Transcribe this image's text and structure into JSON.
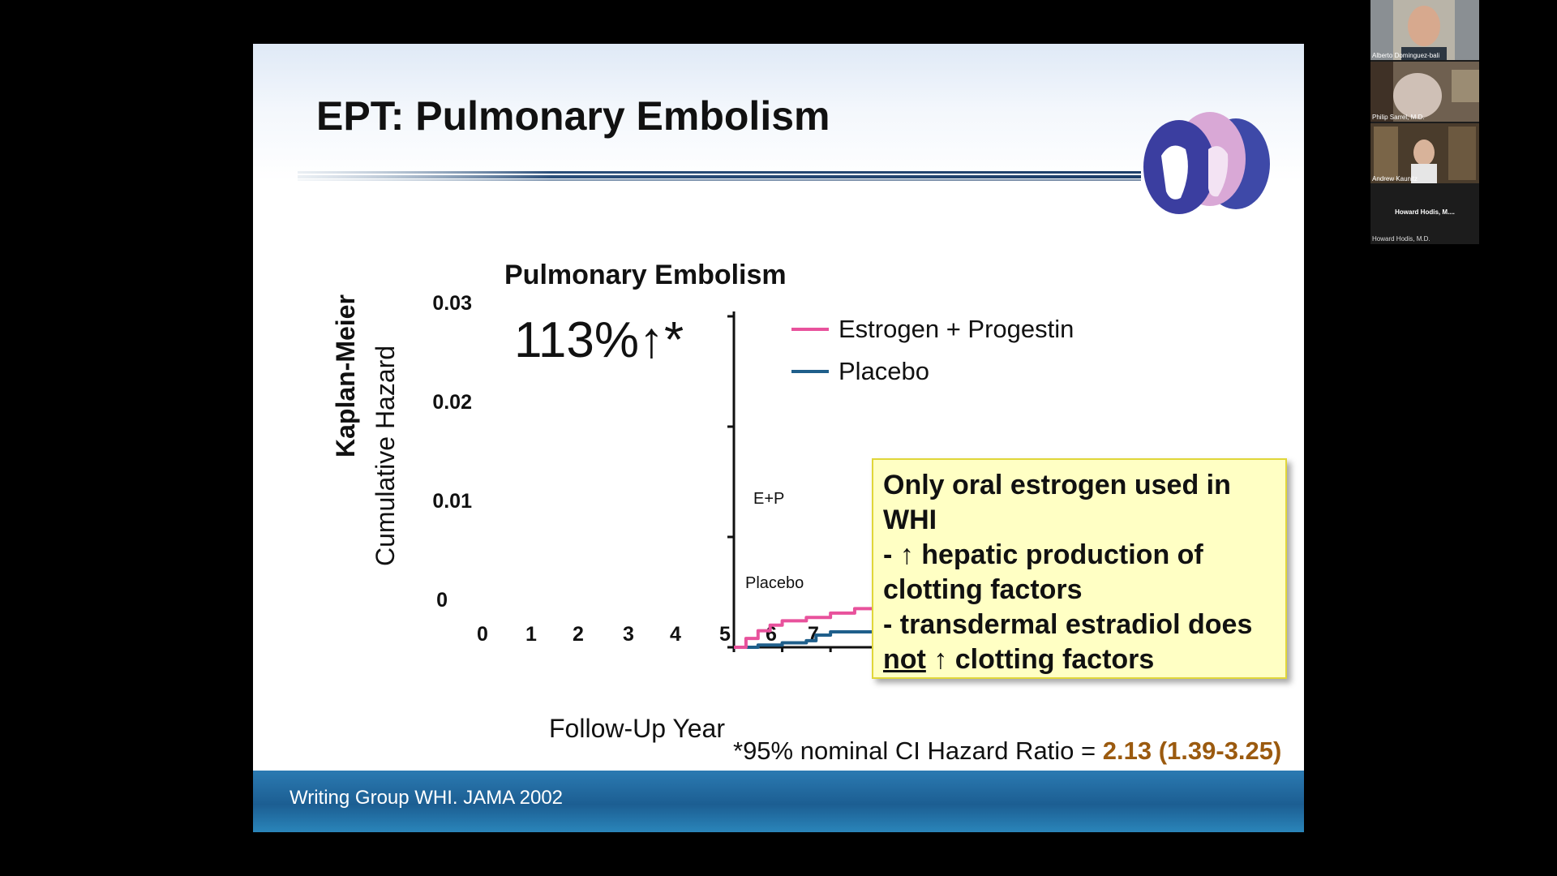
{
  "slide": {
    "title": "EPT: Pulmonary Embolism",
    "chart_title": "Pulmonary Embolism",
    "big_stat": "113%↑*",
    "y_label_1": "Kaplan-Meier",
    "y_label_2": "Cumulative Hazard",
    "x_label": "Follow-Up Year",
    "y_ticks": [
      "0.03",
      "0.02",
      "0.01",
      "0"
    ],
    "x_ticks": [
      "0",
      "1",
      "2",
      "3",
      "4",
      "5",
      "6",
      "7"
    ],
    "legend": [
      {
        "label": "Estrogen + Progestin",
        "color": "#e8529c"
      },
      {
        "label": "Placebo",
        "color": "#1f5f8b"
      }
    ],
    "series_labels": {
      "ep": "E+P",
      "placebo": "Placebo"
    },
    "callout": {
      "line1": "Only oral estrogen used in",
      "line2": "WHI",
      "line3": " - ↑ hepatic production of",
      "line4": "clotting factors",
      "line5": " - transdermal estradiol does",
      "line6_not": "not",
      "line6_rest": " ↑ clotting factors"
    },
    "footnote_prefix": "*95% nominal CI Hazard Ratio = ",
    "footnote_value": "2.13 (1.39-3.25)",
    "footer": "Writing Group WHI. JAMA  2002"
  },
  "chart_data": {
    "type": "line",
    "title": "Pulmonary Embolism",
    "xlabel": "Follow-Up Year",
    "ylabel": "Kaplan-Meier Cumulative Hazard",
    "xlim": [
      0,
      7
    ],
    "ylim": [
      0,
      0.03
    ],
    "x_ticks": [
      0,
      1,
      2,
      3,
      4,
      5,
      6,
      7
    ],
    "y_ticks": [
      0,
      0.01,
      0.02,
      0.03
    ],
    "legend_position": "top-right",
    "series": [
      {
        "name": "Estrogen + Progestin",
        "color": "#e8529c",
        "x": [
          0,
          0.25,
          0.5,
          0.75,
          1,
          1.5,
          2,
          2.5,
          3,
          3.5,
          4,
          4.5,
          5,
          5.5,
          5.8,
          6,
          6.5,
          7
        ],
        "y": [
          0,
          0.0008,
          0.0015,
          0.002,
          0.0024,
          0.0027,
          0.0031,
          0.0035,
          0.0042,
          0.0049,
          0.0054,
          0.0059,
          0.0064,
          0.0069,
          0.0075,
          0.0085,
          0.0083,
          0.0084
        ]
      },
      {
        "name": "Placebo",
        "color": "#1f5f8b",
        "x": [
          0,
          0.5,
          1,
          1.5,
          1.7,
          2,
          2.5,
          3,
          3.3,
          3.5,
          4,
          4.5,
          5,
          5.2,
          5.5,
          5.8,
          6,
          6.5,
          6.8,
          7
        ],
        "y": [
          0,
          0.0002,
          0.0004,
          0.0006,
          0.0011,
          0.0014,
          0.0014,
          0.0015,
          0.0017,
          0.0021,
          0.0022,
          0.0022,
          0.0024,
          0.0028,
          0.0035,
          0.004,
          0.0042,
          0.0042,
          0.0051,
          0.0052
        ]
      }
    ]
  },
  "participants": [
    {
      "name": "Alberto Dominguez-bali"
    },
    {
      "name": "Philip Sarrel, M.D."
    },
    {
      "name": "Andrew Kaunitz"
    }
  ],
  "active_speaker": {
    "name": "Howard Hodis, M....",
    "subtitle": "Howard Hodis, M.D."
  }
}
